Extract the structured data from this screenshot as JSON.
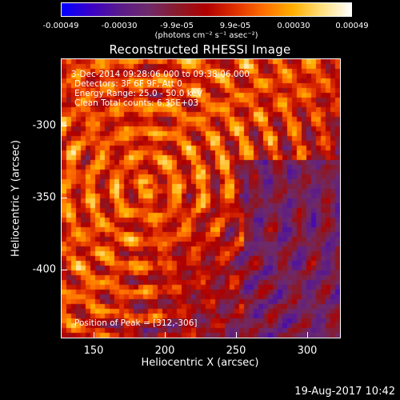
{
  "colorbar": {
    "colors": [
      "#0000ff",
      "#3a00c8",
      "#5a1a8c",
      "#6e2a6a",
      "#8a1a2a",
      "#b00000",
      "#e03000",
      "#ff7000",
      "#ffb000",
      "#ffe080",
      "#ffffff"
    ],
    "ticks": [
      "-0.00049",
      "-0.00030",
      "-9.9e-05",
      "9.9e-05",
      "0.00030",
      "0.00049"
    ],
    "units": "(photons cm⁻² s⁻¹ asec⁻²)"
  },
  "title": "Reconstructed RHESSI Image",
  "annotations": {
    "time": "3-Dec-2014 09:28:06.000 to 09:38:06.000",
    "detectors": "Detectors: 3F 6F 9F, Att 0",
    "energy": "Energy Range: 25.0 - 50.0 keV",
    "clean": "Clean    Total counts: 6.35E+03",
    "peak": "Position of Peak = [312,-306]"
  },
  "axes": {
    "xlabel": "Heliocentric X (arcsec)",
    "ylabel": "Heliocentric Y (arcsec)",
    "xticks": [
      "150",
      "200",
      "250",
      "300"
    ],
    "yticks": [
      "-300",
      "-350",
      "-400"
    ],
    "xlim": [
      128,
      323
    ],
    "ylim": [
      -449,
      -254
    ]
  },
  "timestamp": "19-Aug-2017 10:42"
}
